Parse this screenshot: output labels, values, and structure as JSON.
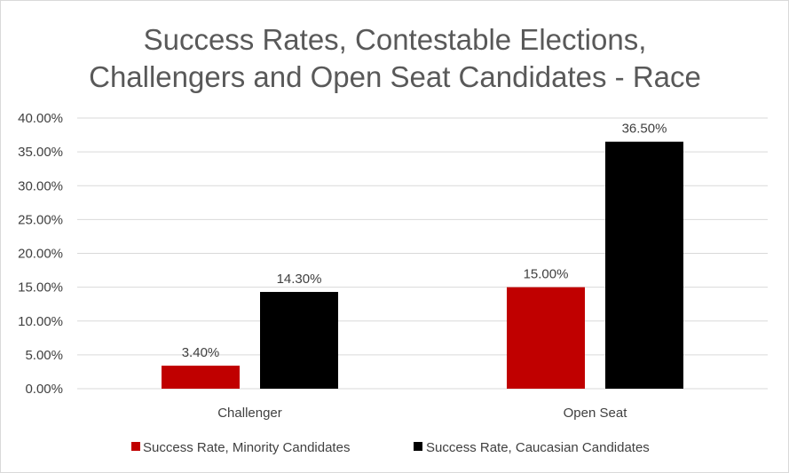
{
  "chart_data": {
    "type": "bar",
    "title": [
      "Success Rates, Contestable Elections,",
      "Challengers and Open Seat Candidates - Race"
    ],
    "categories": [
      "Challenger",
      "Open Seat"
    ],
    "series": [
      {
        "name": "Success Rate, Minority Candidates",
        "values": [
          3.4,
          15.0
        ],
        "labels": [
          "3.40%",
          "15.00%"
        ],
        "color": "#c00000"
      },
      {
        "name": "Success Rate, Caucasian Candidates",
        "values": [
          14.3,
          36.5
        ],
        "labels": [
          "14.30%",
          "36.50%"
        ],
        "color": "#000000"
      }
    ],
    "ylim": [
      0,
      40
    ],
    "yticks": [
      "0.00%",
      "5.00%",
      "10.00%",
      "15.00%",
      "20.00%",
      "25.00%",
      "30.00%",
      "35.00%",
      "40.00%"
    ],
    "xlabel": "",
    "ylabel": "",
    "grid": true,
    "legend_position": "bottom"
  }
}
